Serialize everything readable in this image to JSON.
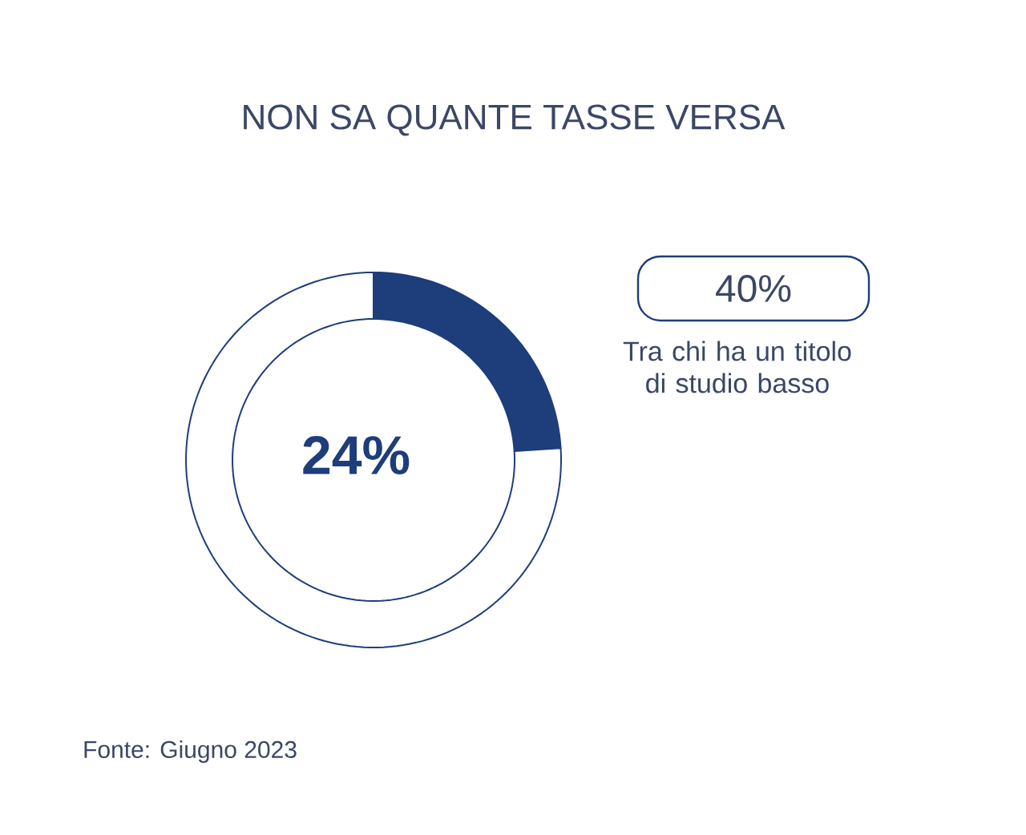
{
  "chart_data": {
    "type": "donut",
    "title": "NON SA QUANTE TASSE VERSA",
    "categories": [
      null,
      null
    ],
    "values": [
      24,
      76
    ],
    "colors": [
      "#1e3d7b",
      "#ffffff"
    ],
    "annotations": [
      "24%",
      "40%",
      "Tra chi ha un titolo di studio basso",
      "Fonte: Giugno 2023"
    ]
  }
}
